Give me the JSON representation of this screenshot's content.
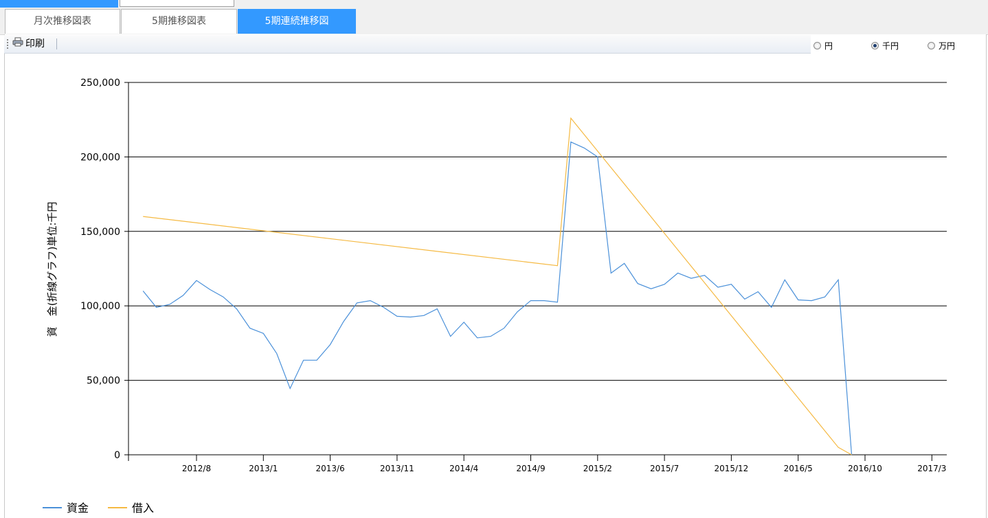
{
  "tabs": [
    {
      "label": "月次推移図表",
      "active": false
    },
    {
      "label": "5期推移図表",
      "active": false
    },
    {
      "label": "5期連続推移図",
      "active": true
    }
  ],
  "toolbar": {
    "print_label": "印刷"
  },
  "unit_options": [
    {
      "label": "円",
      "selected": false
    },
    {
      "label": "千円",
      "selected": true
    },
    {
      "label": "万円",
      "selected": false
    }
  ],
  "chart_data": {
    "type": "line",
    "ylabel": "資　金(折線グラフ)単位:千円",
    "ylim": [
      0,
      250000
    ],
    "yticks": [
      0,
      50000,
      100000,
      150000,
      200000,
      250000
    ],
    "ytick_labels": [
      "0",
      "50,000",
      "100,000",
      "150,000",
      "200,000",
      "250,000"
    ],
    "x_range": [
      0,
      62
    ],
    "xticks": [
      5,
      10,
      15,
      20,
      25,
      30,
      35,
      40,
      45,
      50,
      55,
      60
    ],
    "xtick_labels": [
      "2012/8",
      "2013/1",
      "2013/6",
      "2013/11",
      "2014/4",
      "2014/9",
      "2015/2",
      "2015/7",
      "2015/12",
      "2016/5",
      "2016/10",
      "2017/3"
    ],
    "grid": true,
    "legend_position": "bottom-left",
    "series": [
      {
        "name": "資金",
        "color": "#4a90d9",
        "x": [
          1,
          2,
          3,
          4,
          5,
          6,
          7,
          8,
          9,
          10,
          11,
          12,
          13,
          14,
          15,
          16,
          17,
          18,
          19,
          20,
          21,
          22,
          23,
          24,
          25,
          26,
          27,
          28,
          29,
          30,
          31,
          32,
          33,
          34,
          35,
          36,
          37,
          38,
          39,
          40,
          41,
          42,
          43,
          44,
          45,
          46,
          47,
          48,
          49,
          50,
          51,
          52,
          53,
          54
        ],
        "values": [
          110000,
          99000,
          101000,
          107000,
          117000,
          111000,
          106000,
          98000,
          85000,
          81500,
          68000,
          44500,
          63500,
          63500,
          74000,
          89500,
          102000,
          103500,
          99000,
          93000,
          92500,
          93500,
          98000,
          79500,
          89000,
          78500,
          79500,
          85000,
          96000,
          103500,
          103500,
          102500,
          210000,
          206000,
          200000,
          122000,
          128500,
          115000,
          111500,
          114500,
          122000,
          118500,
          120500,
          112500,
          114500,
          104500,
          109500,
          99000,
          117500,
          104000,
          103500,
          106000,
          117500,
          0
        ]
      },
      {
        "name": "借入",
        "color": "#f5b942",
        "x": [
          1,
          32,
          33,
          53,
          54
        ],
        "values": [
          160000,
          127000,
          226000,
          5000,
          0
        ]
      }
    ]
  }
}
